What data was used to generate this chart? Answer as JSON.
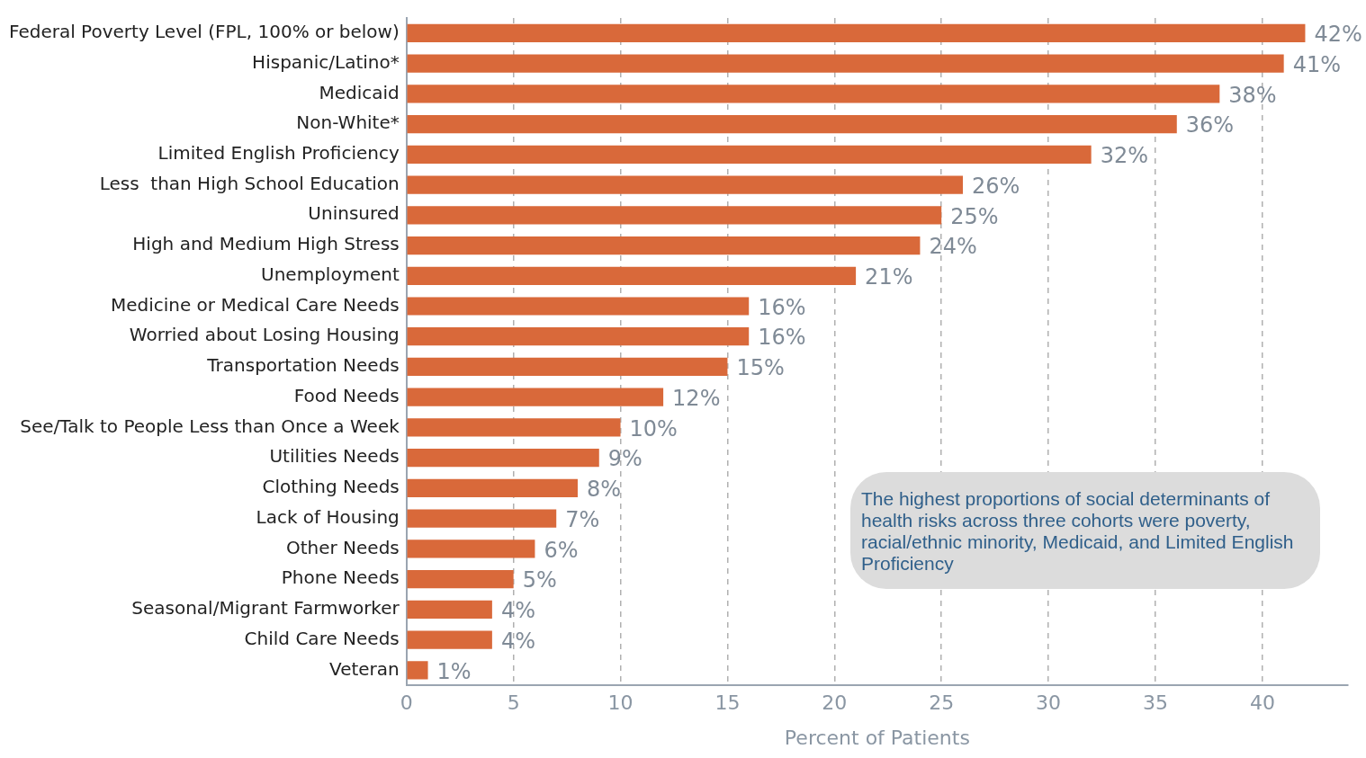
{
  "chart_data": {
    "type": "bar",
    "orientation": "horizontal",
    "xlabel": "Percent of Patients",
    "categories": [
      "Federal Poverty Level (FPL, 100% or below)",
      "Hispanic/Latino*",
      "Medicaid",
      "Non-White*",
      "Limited English Proficiency",
      "Less  than High School Education",
      "Uninsured",
      "High and Medium High Stress",
      "Unemployment",
      "Medicine or Medical Care Needs",
      "Worried about Losing Housing",
      "Transportation Needs",
      "Food Needs",
      "See/Talk to People Less than Once a Week",
      "Utilities Needs",
      "Clothing Needs",
      "Lack of Housing",
      "Other Needs",
      "Phone Needs",
      "Seasonal/Migrant Farmworker",
      "Child Care Needs",
      "Veteran"
    ],
    "values": [
      42,
      41,
      38,
      36,
      32,
      26,
      25,
      24,
      21,
      16,
      16,
      15,
      12,
      10,
      9,
      8,
      7,
      6,
      5,
      4,
      4,
      1
    ],
    "value_labels": [
      "42%",
      "41%",
      "38%",
      "36%",
      "32%",
      "26%",
      "25%",
      "24%",
      "21%",
      "16%",
      "16%",
      "15%",
      "12%",
      "10%",
      "9%",
      "8%",
      "7%",
      "6%",
      "5%",
      "4%",
      "4%",
      "1%"
    ],
    "color": "#d9693a",
    "xlim": [
      0,
      44
    ],
    "xticks": [
      0,
      5,
      10,
      15,
      20,
      25,
      30,
      35,
      40
    ],
    "grid": "x",
    "annotations": [
      "The highest proportions of social determinants of health risks across three cohorts were poverty, racial/ethnic minority, Medicaid, and Limited English Proficiency"
    ]
  }
}
